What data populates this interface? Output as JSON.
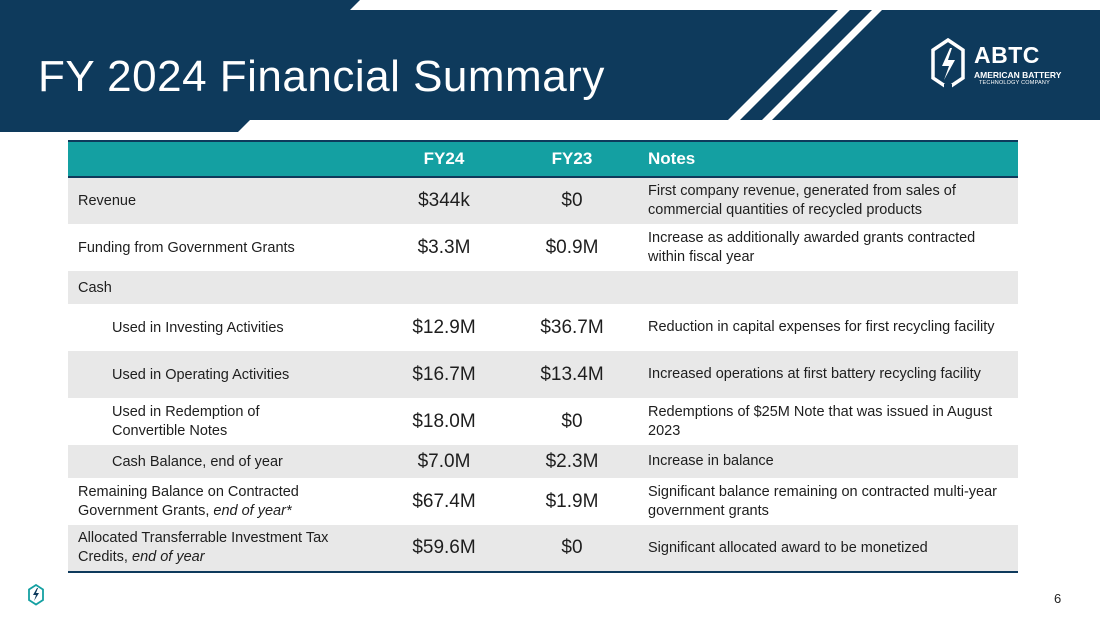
{
  "header": {
    "title": "FY 2024 Financial Summary",
    "logo": {
      "abbr": "ABTC",
      "line1": "AMERICAN BATTERY",
      "line2": "TECHNOLOGY COMPANY"
    }
  },
  "colors": {
    "navy": "#0e3a5c",
    "teal": "#14a0a2",
    "row_shade": "#e8e8e8"
  },
  "table": {
    "headers": {
      "label": "",
      "fy24": "FY24",
      "fy23": "FY23",
      "notes": "Notes"
    },
    "rows": [
      {
        "label": "Revenue",
        "fy24": "$344k",
        "fy23": "$0",
        "notes": "First company revenue, generated from sales of commercial quantities of recycled products"
      },
      {
        "label": "Funding from Government Grants",
        "fy24": "$3.3M",
        "fy23": "$0.9M",
        "notes": "Increase as additionally awarded grants contracted within fiscal year"
      },
      {
        "label": "Cash",
        "fy24": "",
        "fy23": "",
        "notes": ""
      },
      {
        "label": "Used in Investing Activities",
        "fy24": "$12.9M",
        "fy23": "$36.7M",
        "notes": "Reduction in capital expenses for first recycling facility"
      },
      {
        "label": "Used in Operating Activities",
        "fy24": "$16.7M",
        "fy23": "$13.4M",
        "notes": "Increased operations at first battery recycling facility"
      },
      {
        "label": "Used in Redemption of Convertible Notes",
        "fy24": "$18.0M",
        "fy23": "$0",
        "notes": "Redemptions of $25M Note that was issued in August 2023"
      },
      {
        "label": "Cash Balance, end of year",
        "fy24": "$7.0M",
        "fy23": "$2.3M",
        "notes": "Increase in balance"
      },
      {
        "label_main": "Remaining Balance on Contracted Government Grants, ",
        "label_em": "end of year*",
        "fy24": "$67.4M",
        "fy23": "$1.9M",
        "notes": "Significant balance remaining on contracted multi-year government grants"
      },
      {
        "label_main": "Allocated Transferrable Investment Tax Credits, ",
        "label_em": "end of year",
        "fy24": "$59.6M",
        "fy23": "$0",
        "notes": "Significant allocated award to be monetized"
      }
    ]
  },
  "footer": {
    "page_number": "6",
    "icon": "abtc-mark-icon"
  }
}
